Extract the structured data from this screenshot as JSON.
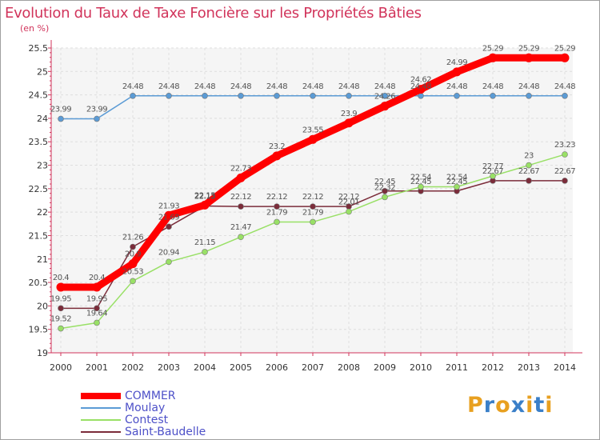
{
  "title": "Evolution du Taux de Taxe Foncière sur les Propriétés Bâties",
  "unit_label": "(en %)",
  "logo_text": "Proxiti",
  "chart_data": {
    "type": "line",
    "title": "Evolution du Taux de Taxe Foncière sur les Propriétés Bâties",
    "ylabel": "(en %)",
    "xlabel": "",
    "x": [
      "2000",
      "2001",
      "2002",
      "2003",
      "2004",
      "2005",
      "2006",
      "2007",
      "2008",
      "2009",
      "2010",
      "2011",
      "2012",
      "2013",
      "2014"
    ],
    "ylim": [
      19,
      25.5
    ],
    "yticks": [
      "19",
      "19.5",
      "20",
      "20.5",
      "21",
      "21.5",
      "22",
      "22.5",
      "23",
      "23.5",
      "24",
      "24.5",
      "25",
      "25.5"
    ],
    "grid": true,
    "legend_position": "bottom-left",
    "series": [
      {
        "name": "COMMER",
        "color": "#ff0000",
        "highlight": true,
        "values": [
          20.4,
          20.4,
          20.9,
          21.93,
          22.15,
          22.73,
          23.2,
          23.55,
          23.9,
          24.26,
          24.62,
          24.99,
          25.29,
          25.29,
          25.29
        ],
        "labels": [
          "20.4",
          "20.4",
          "20.9",
          "21.93",
          "22.15",
          "22.73",
          "23.2",
          "23.55",
          "23.9",
          "24.26",
          "24.62",
          "24.99",
          "25.29",
          "25.29",
          "25.29"
        ]
      },
      {
        "name": "Moulay",
        "color": "#5b9bd5",
        "values": [
          23.99,
          23.99,
          24.48,
          24.48,
          24.48,
          24.48,
          24.48,
          24.48,
          24.48,
          24.48,
          24.48,
          24.48,
          24.48,
          24.48,
          24.48
        ],
        "labels": [
          "23.99",
          "23.99",
          "24.48",
          "24.48",
          "24.48",
          "24.48",
          "24.48",
          "24.48",
          "24.48",
          "24.48",
          "24.48",
          "24.48",
          "24.48",
          "24.48",
          "24.48"
        ]
      },
      {
        "name": "Contest",
        "color": "#99e066",
        "values": [
          19.52,
          19.64,
          20.53,
          20.94,
          21.15,
          21.47,
          21.79,
          21.79,
          22.01,
          22.32,
          22.54,
          22.54,
          22.77,
          23,
          23.23
        ],
        "labels": [
          "19.52",
          "19.64",
          "20.53",
          "20.94",
          "21.15",
          "21.47",
          "21.79",
          "21.79",
          "22.01",
          "22.32",
          "22.54",
          "22.54",
          "22.77",
          "23",
          "23.23"
        ]
      },
      {
        "name": "Saint-Baudelle",
        "color": "#7b2c3a",
        "values": [
          19.95,
          19.95,
          21.26,
          21.69,
          22.13,
          22.12,
          22.12,
          22.12,
          22.12,
          22.45,
          22.45,
          22.45,
          22.67,
          22.67,
          22.67
        ],
        "labels": [
          "19.95",
          "19.95",
          "21.26",
          "21.69",
          "22.13",
          "22.12",
          "22.12",
          "22.12",
          "22.12",
          "22.45",
          "22.45",
          "22.45",
          "22.67",
          "22.67",
          "22.67"
        ]
      }
    ]
  }
}
